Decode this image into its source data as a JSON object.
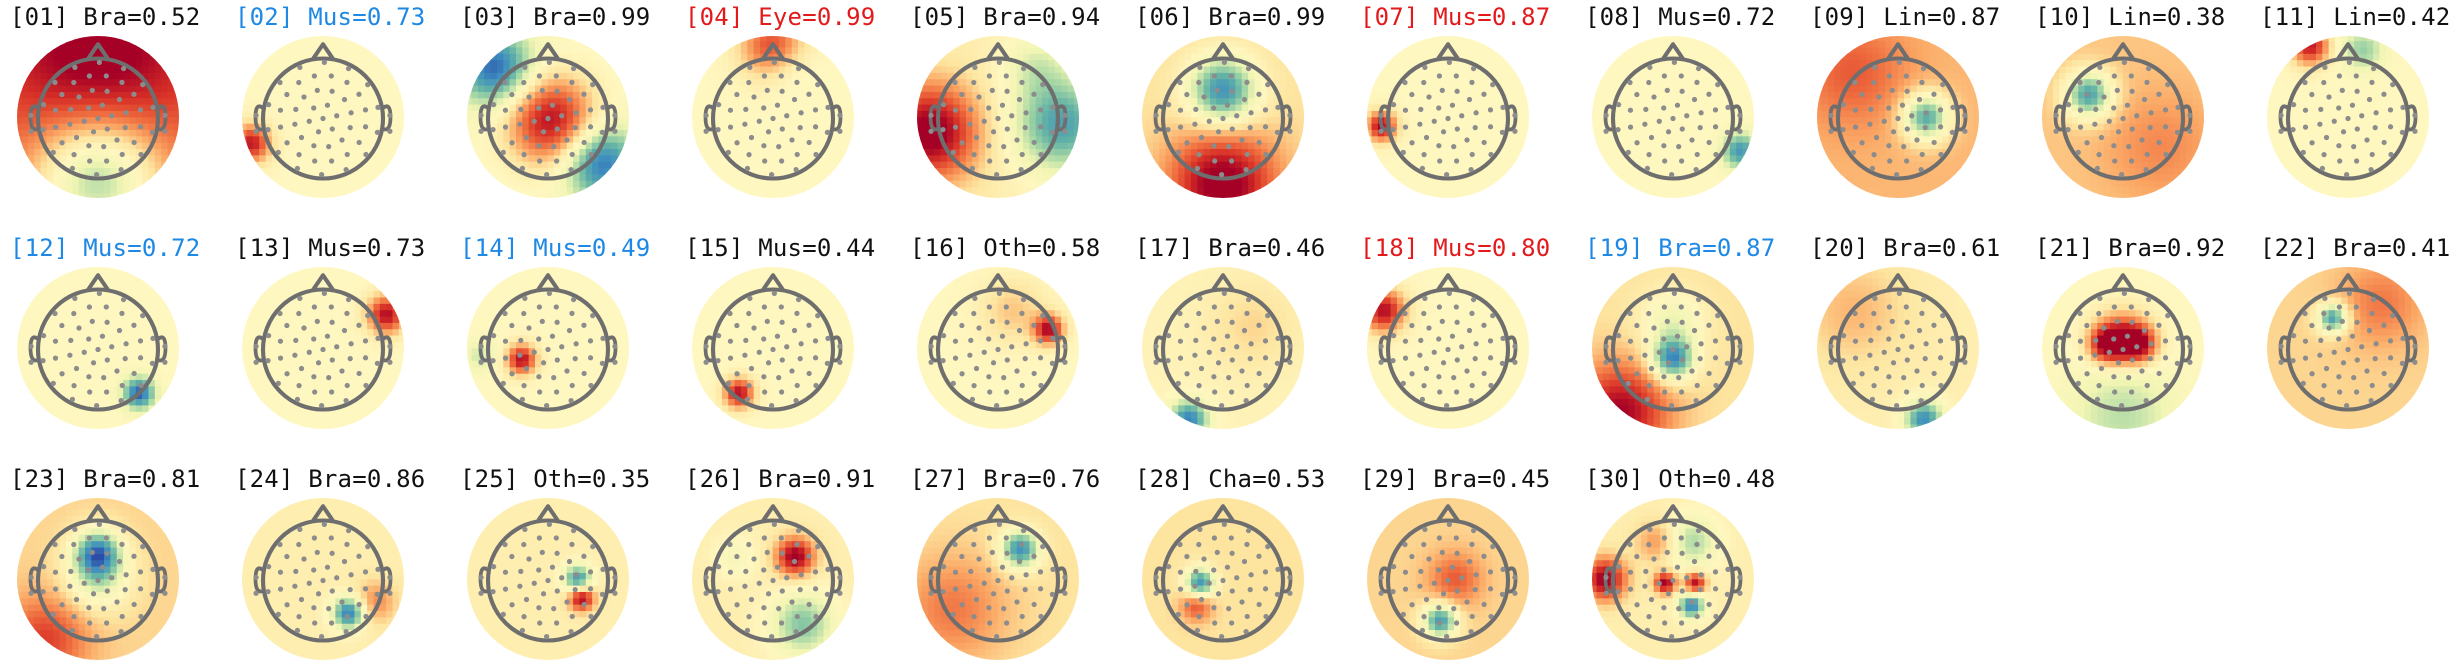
{
  "colors": {
    "normal": "#111111",
    "blue": "#1e88e5",
    "red": "#e31a1c",
    "head_outline": "#6e6e6e",
    "electrode": "#8c8c8c",
    "colormap": [
      "#2c4ea8",
      "#3f8fbf",
      "#62b2a6",
      "#a9d8a5",
      "#f1f5b3",
      "#fff7c0",
      "#fde5a0",
      "#fba865",
      "#ee6a3d",
      "#d73027",
      "#a50026"
    ]
  },
  "components": [
    {
      "label": "[01] Bra=0.52",
      "color": "normal",
      "pattern": {
        "bg": 0.6,
        "g": [
          [
            0,
            -0.85,
            -1.0,
            0.6
          ],
          [
            0,
            0.9,
            0.5,
            0.9
          ]
        ]
      }
    },
    {
      "label": "[02] Mus=0.73",
      "color": "blue",
      "pattern": {
        "bg": 0.0,
        "g": [
          [
            -0.95,
            -0.35,
            0.9,
            0.18
          ]
        ]
      }
    },
    {
      "label": "[03] Bra=0.99",
      "color": "normal",
      "pattern": {
        "bg": -0.05,
        "g": [
          [
            0.05,
            -0.05,
            1.0,
            0.42
          ],
          [
            -0.7,
            0.65,
            -0.9,
            0.35
          ],
          [
            0.7,
            -0.6,
            -0.9,
            0.35
          ]
        ]
      }
    },
    {
      "label": "[04] Eye=0.99",
      "color": "red",
      "pattern": {
        "bg": 0.0,
        "g": [
          [
            0,
            0.95,
            0.75,
            0.3
          ],
          [
            0.2,
            0.7,
            -0.2,
            0.25
          ]
        ]
      }
    },
    {
      "label": "[05] Bra=0.94",
      "color": "normal",
      "pattern": {
        "bg": 0.1,
        "g": [
          [
            -0.9,
            -0.2,
            1.0,
            0.45
          ],
          [
            0.85,
            -0.1,
            -0.8,
            0.45
          ],
          [
            0.5,
            0.7,
            -0.3,
            0.3
          ]
        ]
      }
    },
    {
      "label": "[06] Bra=0.99",
      "color": "normal",
      "pattern": {
        "bg": 0.2,
        "g": [
          [
            0,
            0.35,
            -1.0,
            0.32
          ],
          [
            0,
            -0.9,
            0.9,
            0.5
          ]
        ]
      }
    },
    {
      "label": "[07] Mus=0.87",
      "color": "red",
      "pattern": {
        "bg": 0.0,
        "g": [
          [
            -0.88,
            -0.12,
            1.0,
            0.14
          ]
        ]
      }
    },
    {
      "label": "[08] Mus=0.72",
      "color": "normal",
      "pattern": {
        "bg": 0.0,
        "g": [
          [
            0.9,
            -0.45,
            -0.75,
            0.17
          ]
        ]
      }
    },
    {
      "label": "[09] Lin=0.87",
      "color": "normal",
      "pattern": {
        "bg": 0.35,
        "g": [
          [
            0.38,
            0.0,
            -1.0,
            0.22
          ],
          [
            -0.6,
            0.6,
            0.3,
            0.5
          ]
        ]
      }
    },
    {
      "label": "[10] Lin=0.38",
      "color": "normal",
      "pattern": {
        "bg": 0.3,
        "g": [
          [
            -0.45,
            0.3,
            -1.0,
            0.22
          ],
          [
            0.5,
            -0.4,
            0.2,
            0.5
          ]
        ]
      }
    },
    {
      "label": "[11] Lin=0.42",
      "color": "normal",
      "pattern": {
        "bg": 0.0,
        "g": [
          [
            -0.5,
            0.95,
            0.9,
            0.18
          ],
          [
            0.2,
            0.9,
            -0.45,
            0.2
          ]
        ]
      }
    },
    {
      "label": "[12] Mus=0.72",
      "color": "blue",
      "pattern": {
        "bg": 0.0,
        "g": [
          [
            0.55,
            -0.6,
            -0.95,
            0.15
          ]
        ]
      }
    },
    {
      "label": "[13] Mus=0.73",
      "color": "normal",
      "pattern": {
        "bg": 0.0,
        "g": [
          [
            0.85,
            0.45,
            0.95,
            0.18
          ]
        ]
      }
    },
    {
      "label": "[14] Mus=0.49",
      "color": "blue",
      "pattern": {
        "bg": 0.0,
        "g": [
          [
            -0.35,
            -0.15,
            0.95,
            0.14
          ],
          [
            -0.9,
            -0.1,
            -0.3,
            0.15
          ]
        ]
      }
    },
    {
      "label": "[15] Mus=0.44",
      "color": "normal",
      "pattern": {
        "bg": 0.0,
        "g": [
          [
            -0.45,
            -0.6,
            0.95,
            0.14
          ]
        ]
      }
    },
    {
      "label": "[16] Oth=0.58",
      "color": "normal",
      "pattern": {
        "bg": 0.0,
        "g": [
          [
            0.68,
            0.25,
            0.95,
            0.14
          ],
          [
            0.2,
            0.5,
            0.3,
            0.3
          ]
        ]
      }
    },
    {
      "label": "[17] Bra=0.46",
      "color": "normal",
      "pattern": {
        "bg": 0.05,
        "g": [
          [
            -0.45,
            -0.95,
            -0.9,
            0.18
          ],
          [
            0.4,
            0.3,
            0.2,
            0.4
          ]
        ]
      }
    },
    {
      "label": "[18] Mus=0.80",
      "color": "red",
      "pattern": {
        "bg": 0.0,
        "g": [
          [
            -0.85,
            0.5,
            0.95,
            0.2
          ]
        ]
      }
    },
    {
      "label": "[19] Bra=0.87",
      "color": "blue",
      "pattern": {
        "bg": 0.2,
        "g": [
          [
            0.0,
            -0.15,
            -1.0,
            0.2
          ],
          [
            0.0,
            0.35,
            -0.4,
            0.3
          ],
          [
            -0.7,
            -0.85,
            0.8,
            0.45
          ]
        ]
      }
    },
    {
      "label": "[20] Bra=0.61",
      "color": "normal",
      "pattern": {
        "bg": 0.1,
        "g": [
          [
            0.35,
            -0.95,
            -0.9,
            0.18
          ],
          [
            -0.6,
            0.5,
            0.25,
            0.5
          ]
        ]
      }
    },
    {
      "label": "[21] Bra=0.92",
      "color": "normal",
      "pattern": {
        "bg": 0.0,
        "g": [
          [
            -0.2,
            0.05,
            1.0,
            0.18
          ],
          [
            0.2,
            0.05,
            1.0,
            0.18
          ],
          [
            0,
            0.2,
            0.5,
            0.25
          ],
          [
            0,
            -0.9,
            -0.35,
            0.5
          ]
        ]
      }
    },
    {
      "label": "[22] Bra=0.41",
      "color": "normal",
      "pattern": {
        "bg": 0.25,
        "g": [
          [
            -0.2,
            0.4,
            -1.0,
            0.14
          ],
          [
            0.45,
            0.6,
            0.3,
            0.4
          ]
        ]
      }
    },
    {
      "label": "[23] Bra=0.81",
      "color": "normal",
      "pattern": {
        "bg": 0.25,
        "g": [
          [
            0.0,
            0.35,
            -1.0,
            0.22
          ],
          [
            0.0,
            0.0,
            -0.5,
            0.3
          ],
          [
            -0.7,
            -0.8,
            0.5,
            0.4
          ]
        ]
      }
    },
    {
      "label": "[24] Bra=0.86",
      "color": "normal",
      "pattern": {
        "bg": 0.1,
        "g": [
          [
            0.35,
            -0.45,
            -1.0,
            0.15
          ],
          [
            0.7,
            -0.3,
            0.4,
            0.2
          ]
        ]
      }
    },
    {
      "label": "[25] Oth=0.35",
      "color": "normal",
      "pattern": {
        "bg": 0.1,
        "g": [
          [
            0.4,
            0.0,
            -0.9,
            0.13
          ],
          [
            0.45,
            -0.25,
            0.95,
            0.12
          ]
        ]
      }
    },
    {
      "label": "[26] Bra=0.91",
      "color": "normal",
      "pattern": {
        "bg": 0.1,
        "g": [
          [
            0.3,
            0.3,
            0.95,
            0.18
          ],
          [
            0.4,
            -0.6,
            -0.6,
            0.3
          ],
          [
            -0.5,
            0.3,
            -0.2,
            0.2
          ]
        ]
      }
    },
    {
      "label": "[27] Bra=0.76",
      "color": "normal",
      "pattern": {
        "bg": 0.2,
        "g": [
          [
            0.3,
            0.4,
            -1.0,
            0.18
          ],
          [
            -0.6,
            -0.4,
            0.35,
            0.5
          ]
        ]
      }
    },
    {
      "label": "[28] Cha=0.53",
      "color": "normal",
      "pattern": {
        "bg": 0.2,
        "g": [
          [
            -0.3,
            -0.05,
            -1.0,
            0.14
          ],
          [
            -0.35,
            -0.35,
            0.5,
            0.15
          ]
        ]
      }
    },
    {
      "label": "[29] Bra=0.45",
      "color": "normal",
      "pattern": {
        "bg": 0.25,
        "g": [
          [
            -0.1,
            -0.55,
            -1.0,
            0.16
          ],
          [
            0.1,
            0.0,
            0.4,
            0.25
          ]
        ]
      }
    },
    {
      "label": "[30] Oth=0.48",
      "color": "normal",
      "pattern": {
        "bg": 0.1,
        "g": [
          [
            -0.9,
            0.0,
            0.95,
            0.2
          ],
          [
            -0.1,
            -0.05,
            0.95,
            0.1
          ],
          [
            0.3,
            -0.05,
            0.9,
            0.1
          ],
          [
            0.25,
            -0.35,
            -0.95,
            0.12
          ],
          [
            0.25,
            0.5,
            -0.5,
            0.25
          ],
          [
            -0.2,
            0.5,
            0.4,
            0.2
          ]
        ]
      }
    }
  ]
}
